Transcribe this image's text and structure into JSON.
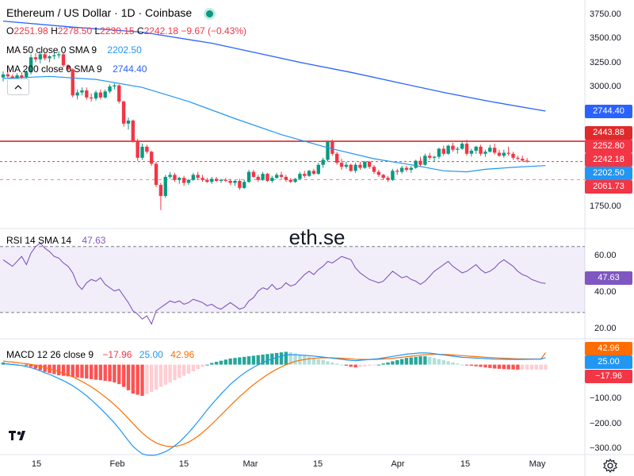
{
  "header": {
    "symbol_title": "Ethereum / US Dollar · 1D · Coinbase",
    "ohlc": {
      "o_label": "O",
      "o_value": "2251.98",
      "h_label": "H",
      "h_value": "2278.50",
      "l_label": "L",
      "l_value": "2230.15",
      "c_label": "C",
      "c_value": "2242.18",
      "change": "−9.67 (−0.43%)"
    },
    "ma50_label": "MA 50 close 0 SMA 9",
    "ma50_value": "2202.50",
    "ma200_label": "MA 200 close 0 SMA 9",
    "ma200_value": "2744.40"
  },
  "indicators": {
    "rsi_label": "RSI 14 SMA 14",
    "rsi_value": "47.63",
    "macd_label": "MACD 12 26 close 9",
    "macd_hist": "−17.96",
    "macd_line": "25.00",
    "macd_signal": "42.96"
  },
  "watermark": "eth.se",
  "price_tags": {
    "ma200": "2744.40",
    "resistance": "2443.88",
    "high": "2252.80",
    "close": "2242.18",
    "ma50": "2202.50",
    "low": "2061.73",
    "rsi": "47.63",
    "macd_signal": "42.96",
    "macd_line": "25.00",
    "macd_hist": "−17.96"
  },
  "price_axis_ticks": [
    "3750.00",
    "3500.00",
    "3250.00",
    "3000.00",
    "1750.00"
  ],
  "rsi_axis_ticks": [
    "60.00",
    "40.00",
    "20.00"
  ],
  "macd_axis_ticks": [
    "−100.00",
    "−200.00",
    "−300.00"
  ],
  "date_ticks": [
    "15",
    "Feb",
    "15",
    "Mar",
    "15",
    "Apr",
    "15",
    "May"
  ],
  "colors": {
    "up": "#089981",
    "down": "#f23645",
    "ma50": "#2196f3",
    "ma200": "#2962ff",
    "rsi": "#7e57c2",
    "macd_signal": "#ff6d00",
    "macd_line": "#2196f3",
    "resistance": "#e02a2a"
  },
  "chart_data": {
    "type": "candlestick",
    "price_ylim": [
      1600,
      3850
    ],
    "candles": [
      [
        3080,
        3140,
        3040,
        3110
      ],
      [
        3110,
        3160,
        3070,
        3090
      ],
      [
        3090,
        3110,
        3020,
        3050
      ],
      [
        3050,
        3120,
        3030,
        3100
      ],
      [
        3100,
        3130,
        3060,
        3080
      ],
      [
        3080,
        3150,
        3060,
        3130
      ],
      [
        3130,
        3310,
        3110,
        3280
      ],
      [
        3280,
        3320,
        3230,
        3260
      ],
      [
        3260,
        3340,
        3220,
        3310
      ],
      [
        3310,
        3320,
        3250,
        3270
      ],
      [
        3270,
        3300,
        3230,
        3290
      ],
      [
        3290,
        3330,
        3260,
        3300
      ],
      [
        3300,
        3340,
        3270,
        3310
      ],
      [
        3310,
        3320,
        3180,
        3200
      ],
      [
        3200,
        3210,
        3140,
        3160
      ],
      [
        3160,
        3170,
        2880,
        2900
      ],
      [
        2900,
        2960,
        2860,
        2930
      ],
      [
        2930,
        2980,
        2900,
        2950
      ],
      [
        2950,
        2980,
        2860,
        2880
      ],
      [
        2880,
        2920,
        2840,
        2870
      ],
      [
        2870,
        2950,
        2850,
        2930
      ],
      [
        2930,
        2960,
        2860,
        2880
      ],
      [
        2880,
        2960,
        2870,
        2940
      ],
      [
        2940,
        3010,
        2920,
        2990
      ],
      [
        2990,
        3020,
        2960,
        3000
      ],
      [
        3000,
        3010,
        2820,
        2840
      ],
      [
        2840,
        2850,
        2590,
        2620
      ],
      [
        2620,
        2680,
        2560,
        2650
      ],
      [
        2650,
        2660,
        2430,
        2450
      ],
      [
        2450,
        2470,
        2250,
        2280
      ],
      [
        2280,
        2420,
        2260,
        2390
      ],
      [
        2390,
        2410,
        2320,
        2340
      ],
      [
        2340,
        2350,
        2200,
        2220
      ],
      [
        2220,
        2240,
        1990,
        2010
      ],
      [
        2010,
        2030,
        1760,
        1900
      ],
      [
        1900,
        2110,
        1880,
        2090
      ],
      [
        2090,
        2140,
        2070,
        2110
      ],
      [
        2110,
        2130,
        2040,
        2060
      ],
      [
        2060,
        2090,
        2020,
        2080
      ],
      [
        2080,
        2100,
        2000,
        2030
      ],
      [
        2030,
        2070,
        2010,
        2060
      ],
      [
        2060,
        2130,
        2050,
        2110
      ],
      [
        2110,
        2140,
        2060,
        2080
      ],
      [
        2080,
        2110,
        2040,
        2060
      ],
      [
        2060,
        2080,
        2030,
        2040
      ],
      [
        2040,
        2090,
        2020,
        2070
      ],
      [
        2070,
        2090,
        2040,
        2050
      ],
      [
        2050,
        2070,
        2030,
        2060
      ],
      [
        2060,
        2080,
        2040,
        2050
      ],
      [
        2050,
        2070,
        2010,
        2030
      ],
      [
        2030,
        2060,
        2000,
        2050
      ],
      [
        2050,
        2070,
        1960,
        1980
      ],
      [
        1980,
        2060,
        1970,
        2040
      ],
      [
        2040,
        2160,
        2030,
        2140
      ],
      [
        2140,
        2160,
        2080,
        2090
      ],
      [
        2090,
        2110,
        2040,
        2060
      ],
      [
        2060,
        2140,
        2050,
        2120
      ],
      [
        2120,
        2130,
        2040,
        2050
      ],
      [
        2050,
        2100,
        2030,
        2080
      ],
      [
        2080,
        2130,
        2070,
        2110
      ],
      [
        2110,
        2140,
        2070,
        2090
      ],
      [
        2090,
        2110,
        2040,
        2060
      ],
      [
        2060,
        2080,
        2030,
        2040
      ],
      [
        2040,
        2080,
        2030,
        2070
      ],
      [
        2070,
        2140,
        2060,
        2120
      ],
      [
        2120,
        2150,
        2080,
        2100
      ],
      [
        2100,
        2160,
        2090,
        2150
      ],
      [
        2150,
        2170,
        2110,
        2120
      ],
      [
        2120,
        2230,
        2110,
        2210
      ],
      [
        2210,
        2280,
        2180,
        2260
      ],
      [
        2260,
        2450,
        2240,
        2440
      ],
      [
        2440,
        2460,
        2300,
        2320
      ],
      [
        2320,
        2340,
        2210,
        2230
      ],
      [
        2230,
        2270,
        2160,
        2190
      ],
      [
        2190,
        2240,
        2170,
        2210
      ],
      [
        2210,
        2220,
        2140,
        2150
      ],
      [
        2150,
        2230,
        2130,
        2210
      ],
      [
        2210,
        2240,
        2160,
        2180
      ],
      [
        2180,
        2250,
        2170,
        2240
      ],
      [
        2240,
        2250,
        2170,
        2190
      ],
      [
        2190,
        2210,
        2120,
        2140
      ],
      [
        2140,
        2160,
        2090,
        2110
      ],
      [
        2110,
        2120,
        2060,
        2080
      ],
      [
        2080,
        2100,
        2040,
        2060
      ],
      [
        2060,
        2170,
        2050,
        2150
      ],
      [
        2150,
        2170,
        2110,
        2140
      ],
      [
        2140,
        2200,
        2120,
        2180
      ],
      [
        2180,
        2200,
        2140,
        2160
      ],
      [
        2160,
        2200,
        2130,
        2180
      ],
      [
        2180,
        2260,
        2170,
        2250
      ],
      [
        2250,
        2290,
        2190,
        2210
      ],
      [
        2210,
        2320,
        2200,
        2300
      ],
      [
        2300,
        2330,
        2260,
        2280
      ],
      [
        2280,
        2300,
        2240,
        2290
      ],
      [
        2290,
        2380,
        2270,
        2370
      ],
      [
        2370,
        2400,
        2300,
        2320
      ],
      [
        2320,
        2410,
        2310,
        2400
      ],
      [
        2400,
        2430,
        2340,
        2360
      ],
      [
        2360,
        2390,
        2320,
        2370
      ],
      [
        2370,
        2440,
        2360,
        2420
      ],
      [
        2420,
        2460,
        2300,
        2320
      ],
      [
        2320,
        2370,
        2290,
        2350
      ],
      [
        2350,
        2400,
        2320,
        2390
      ],
      [
        2390,
        2410,
        2300,
        2320
      ],
      [
        2320,
        2360,
        2290,
        2340
      ],
      [
        2340,
        2410,
        2330,
        2380
      ],
      [
        2380,
        2420,
        2310,
        2330
      ],
      [
        2330,
        2360,
        2290,
        2300
      ],
      [
        2300,
        2360,
        2280,
        2330
      ],
      [
        2330,
        2390,
        2300,
        2320
      ],
      [
        2320,
        2340,
        2260,
        2280
      ],
      [
        2280,
        2300,
        2250,
        2270
      ],
      [
        2270,
        2300,
        2240,
        2252
      ],
      [
        2251.98,
        2278.5,
        2230.15,
        2242.18
      ]
    ],
    "ma50_points": [
      [
        0,
        3070
      ],
      [
        10,
        3090
      ],
      [
        20,
        3060
      ],
      [
        30,
        2980
      ],
      [
        40,
        2840
      ],
      [
        50,
        2670
      ],
      [
        60,
        2510
      ],
      [
        70,
        2380
      ],
      [
        80,
        2270
      ],
      [
        88,
        2210
      ],
      [
        95,
        2150
      ],
      [
        100,
        2140
      ],
      [
        104,
        2165
      ],
      [
        110,
        2185
      ],
      [
        117,
        2202.5
      ]
    ],
    "ma200_points": [
      [
        0,
        3640
      ],
      [
        15,
        3580
      ],
      [
        30,
        3530
      ],
      [
        45,
        3420
      ],
      [
        55,
        3320
      ],
      [
        65,
        3220
      ],
      [
        75,
        3130
      ],
      [
        85,
        3030
      ],
      [
        95,
        2930
      ],
      [
        105,
        2840
      ],
      [
        117,
        2744.4
      ]
    ],
    "resistance_level": 2443.88,
    "rsi": {
      "ylim": [
        15,
        80
      ],
      "bands": [
        30,
        70
      ],
      "values": [
        62,
        60,
        58,
        61,
        64,
        59,
        66,
        70,
        72,
        69,
        67,
        64,
        63,
        60,
        58,
        54,
        47,
        44,
        48,
        50,
        49,
        51,
        47,
        45,
        43,
        44,
        40,
        36,
        31,
        29,
        26,
        28,
        23,
        31,
        33,
        35,
        37,
        36,
        37,
        35,
        36,
        38,
        37,
        36,
        34,
        35,
        33,
        32,
        34,
        36,
        34,
        32,
        33,
        37,
        39,
        43,
        45,
        44,
        47,
        44,
        45,
        48,
        46,
        47,
        50,
        53,
        55,
        53,
        56,
        58,
        61,
        60,
        62,
        64,
        63,
        62,
        57,
        54,
        52,
        50,
        49,
        48,
        49,
        52,
        55,
        53,
        51,
        52,
        50,
        49,
        47,
        49,
        52,
        55,
        57,
        59,
        61,
        58,
        56,
        54,
        55,
        57,
        59,
        56,
        54,
        55,
        57,
        60,
        62,
        60,
        58,
        55,
        53,
        52,
        50,
        49,
        48,
        47.63
      ]
    },
    "macd": {
      "ylim": [
        -320,
        90
      ],
      "hist": [
        8,
        6,
        4,
        2,
        0,
        -4,
        -8,
        -14,
        -20,
        -26,
        -30,
        -34,
        -38,
        -40,
        -42,
        -44,
        -46,
        -48,
        -50,
        -52,
        -54,
        -56,
        -58,
        -60,
        -64,
        -70,
        -80,
        -92,
        -104,
        -108,
        -112,
        -106,
        -98,
        -90,
        -80,
        -72,
        -64,
        -56,
        -48,
        -40,
        -32,
        -24,
        -16,
        -8,
        0,
        6,
        10,
        14,
        18,
        22,
        24,
        26,
        28,
        30,
        32,
        34,
        36,
        38,
        40,
        42,
        44,
        46,
        44,
        40,
        36,
        32,
        28,
        24,
        20,
        16,
        12,
        8,
        4,
        0,
        -4,
        -8,
        -10,
        -8,
        -6,
        -4,
        -2,
        0,
        4,
        8,
        12,
        16,
        20,
        24,
        26,
        28,
        30,
        30,
        28,
        24,
        20,
        16,
        12,
        8,
        4,
        0,
        -2,
        -4,
        -6,
        -8,
        -10,
        -12,
        -14,
        -15,
        -16,
        -17,
        -17.5,
        -18,
        -17.96,
        -17.96,
        -17.96,
        -17.96,
        -17.96,
        -17.96
      ]
    }
  }
}
